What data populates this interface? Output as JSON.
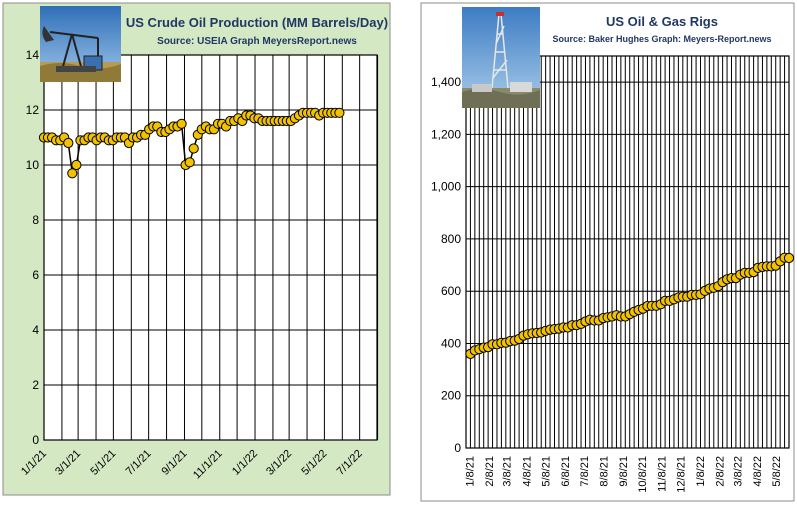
{
  "colors": {
    "left_panel_bg": "#d5e8c4",
    "right_panel_bg": "#ffffff",
    "plot_bg": "#ffffff",
    "grid": "#000000",
    "marker_fill": "#f2c200",
    "marker_stroke": "#000000",
    "title_text": "#1f3864"
  },
  "icons": {
    "left_photo": "oil-pumpjack-photo",
    "right_photo": "drilling-rig-photo"
  },
  "chart_data": [
    {
      "type": "line",
      "title": "US Crude Oil Production (MM Barrels/Day)",
      "subtitle": "Source: USEIA   Graph  MeyersReport.news",
      "xlabel": "",
      "ylabel": "",
      "ylim": [
        0,
        14
      ],
      "yticks": [
        0,
        2,
        4,
        6,
        8,
        10,
        12,
        14
      ],
      "ytick_labels": [
        "0",
        "2",
        "4",
        "6",
        "8",
        "10",
        "12",
        "14"
      ],
      "xlim": [
        "2021-01-01",
        "2022-07-31"
      ],
      "xtick_labels": [
        "1/1/21",
        "3/1/21",
        "5/1/21",
        "7/1/21",
        "9/1/21",
        "11/1/21",
        "1/1/22",
        "3/1/22",
        "5/1/22",
        "7/1/22"
      ],
      "grid": true,
      "marker": "circle",
      "series": [
        {
          "x": [
            "2021-01-01",
            "2021-01-08",
            "2021-01-15",
            "2021-01-22",
            "2021-01-29",
            "2021-02-05",
            "2021-02-12",
            "2021-02-19",
            "2021-02-26",
            "2021-03-05",
            "2021-03-12",
            "2021-03-19",
            "2021-03-26",
            "2021-04-02",
            "2021-04-09",
            "2021-04-16",
            "2021-04-23",
            "2021-04-30",
            "2021-05-07",
            "2021-05-14",
            "2021-05-21",
            "2021-05-28",
            "2021-06-04",
            "2021-06-11",
            "2021-06-18",
            "2021-06-25",
            "2021-07-02",
            "2021-07-09",
            "2021-07-16",
            "2021-07-23",
            "2021-07-30",
            "2021-08-06",
            "2021-08-13",
            "2021-08-20",
            "2021-08-27",
            "2021-09-03",
            "2021-09-10",
            "2021-09-17",
            "2021-09-24",
            "2021-10-01",
            "2021-10-08",
            "2021-10-15",
            "2021-10-22",
            "2021-10-29",
            "2021-11-05",
            "2021-11-12",
            "2021-11-19",
            "2021-11-26",
            "2021-12-03",
            "2021-12-10",
            "2021-12-17",
            "2021-12-24",
            "2021-12-31",
            "2022-01-07",
            "2022-01-14",
            "2022-01-21",
            "2022-01-28",
            "2022-02-04",
            "2022-02-11",
            "2022-02-18",
            "2022-02-25",
            "2022-03-04",
            "2022-03-11",
            "2022-03-18",
            "2022-03-25",
            "2022-04-01",
            "2022-04-08",
            "2022-04-15",
            "2022-04-22",
            "2022-04-29",
            "2022-05-06",
            "2022-05-13",
            "2022-05-20",
            "2022-05-27"
          ],
          "values": [
            11.0,
            11.0,
            11.0,
            10.9,
            10.9,
            11.0,
            10.8,
            9.7,
            10.0,
            10.9,
            10.9,
            11.0,
            11.0,
            10.9,
            11.0,
            11.0,
            10.9,
            10.9,
            11.0,
            11.0,
            11.0,
            10.8,
            11.0,
            11.0,
            11.1,
            11.1,
            11.3,
            11.4,
            11.4,
            11.2,
            11.2,
            11.3,
            11.4,
            11.4,
            11.5,
            10.0,
            10.1,
            10.6,
            11.1,
            11.3,
            11.4,
            11.3,
            11.3,
            11.5,
            11.5,
            11.4,
            11.6,
            11.6,
            11.7,
            11.6,
            11.8,
            11.8,
            11.7,
            11.7,
            11.6,
            11.6,
            11.6,
            11.6,
            11.6,
            11.6,
            11.6,
            11.6,
            11.7,
            11.8,
            11.9,
            11.9,
            11.9,
            11.9,
            11.8,
            11.9,
            11.9,
            11.9,
            11.9,
            11.9
          ]
        }
      ]
    },
    {
      "type": "line",
      "title": "US Oil & Gas Rigs",
      "subtitle": "Source: Baker Hughes Graph: Meyers-Report.news",
      "xlabel": "",
      "ylabel": "",
      "ylim": [
        0,
        1500
      ],
      "yticks": [
        0,
        200,
        400,
        600,
        800,
        1000,
        1200,
        1400
      ],
      "ytick_labels": [
        "0",
        "200",
        "400",
        "600",
        "800",
        "1,000",
        "1,200",
        "1,400"
      ],
      "xlim": [
        "2021-01-01",
        "2022-05-27"
      ],
      "xtick_labels": [
        "1/8/21",
        "2/8/21",
        "3/8/21",
        "4/8/21",
        "5/8/21",
        "6/8/21",
        "7/8/21",
        "8/8/21",
        "9/8/21",
        "10/8/21",
        "11/8/21",
        "12/8/21",
        "1/8/22",
        "2/8/22",
        "3/8/22",
        "4/8/22",
        "5/8/22"
      ],
      "grid": true,
      "marker": "circle",
      "series": [
        {
          "x": [
            "2021-01-08",
            "2021-01-15",
            "2021-01-22",
            "2021-01-29",
            "2021-02-05",
            "2021-02-12",
            "2021-02-19",
            "2021-02-26",
            "2021-03-05",
            "2021-03-12",
            "2021-03-19",
            "2021-03-26",
            "2021-04-02",
            "2021-04-09",
            "2021-04-16",
            "2021-04-23",
            "2021-04-30",
            "2021-05-07",
            "2021-05-14",
            "2021-05-21",
            "2021-05-28",
            "2021-06-04",
            "2021-06-11",
            "2021-06-18",
            "2021-06-25",
            "2021-07-02",
            "2021-07-09",
            "2021-07-16",
            "2021-07-23",
            "2021-07-30",
            "2021-08-06",
            "2021-08-13",
            "2021-08-20",
            "2021-08-27",
            "2021-09-03",
            "2021-09-10",
            "2021-09-17",
            "2021-09-24",
            "2021-10-01",
            "2021-10-08",
            "2021-10-15",
            "2021-10-22",
            "2021-10-29",
            "2021-11-05",
            "2021-11-12",
            "2021-11-19",
            "2021-11-26",
            "2021-12-03",
            "2021-12-10",
            "2021-12-17",
            "2021-12-24",
            "2021-12-31",
            "2022-01-07",
            "2022-01-14",
            "2022-01-21",
            "2022-01-28",
            "2022-02-04",
            "2022-02-11",
            "2022-02-18",
            "2022-02-25",
            "2022-03-04",
            "2022-03-11",
            "2022-03-18",
            "2022-03-25",
            "2022-04-01",
            "2022-04-08",
            "2022-04-15",
            "2022-04-22",
            "2022-04-29",
            "2022-05-06",
            "2022-05-13",
            "2022-05-20",
            "2022-05-27"
          ],
          "values": [
            360,
            373,
            378,
            384,
            386,
            397,
            397,
            402,
            403,
            409,
            411,
            417,
            430,
            435,
            439,
            440,
            442,
            448,
            453,
            455,
            457,
            461,
            461,
            470,
            470,
            475,
            484,
            491,
            488,
            488,
            497,
            500,
            503,
            508,
            503,
            503,
            512,
            521,
            528,
            533,
            543,
            544,
            544,
            550,
            563,
            563,
            569,
            576,
            579,
            579,
            586,
            586,
            588,
            601,
            610,
            613,
            619,
            635,
            645,
            650,
            650,
            663,
            670,
            670,
            673,
            689,
            693,
            695,
            695,
            698,
            714,
            728,
            727
          ]
        }
      ]
    }
  ]
}
